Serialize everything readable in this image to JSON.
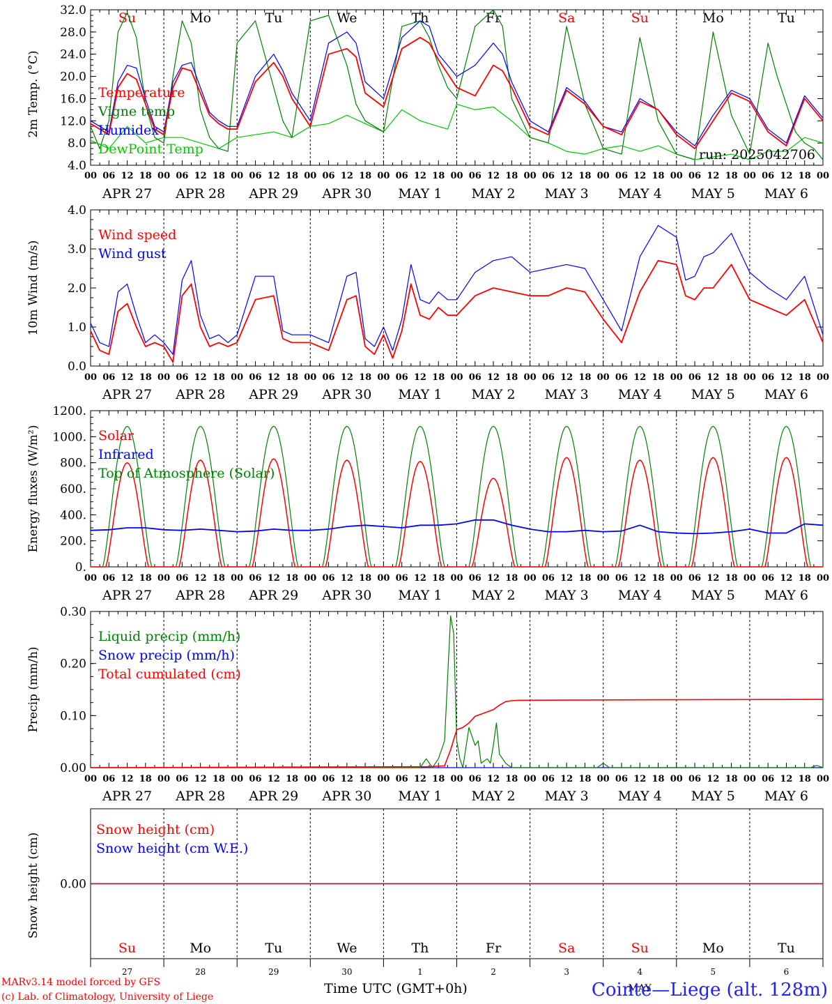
{
  "days": [
    {
      "abbr": "Su",
      "weekend": true,
      "label": "APR 27",
      "num": "27"
    },
    {
      "abbr": "Mo",
      "weekend": false,
      "label": "APR 28",
      "num": "28"
    },
    {
      "abbr": "Tu",
      "weekend": false,
      "label": "APR 29",
      "num": "29"
    },
    {
      "abbr": "We",
      "weekend": false,
      "label": "APR 30",
      "num": "30"
    },
    {
      "abbr": "Th",
      "weekend": false,
      "label": "MAY  1",
      "num": "1"
    },
    {
      "abbr": "Fr",
      "weekend": false,
      "label": "MAY  2",
      "num": "2"
    },
    {
      "abbr": "Sa",
      "weekend": true,
      "label": "MAY  3",
      "num": "3"
    },
    {
      "abbr": "Su",
      "weekend": true,
      "label": "MAY  4",
      "num": "4"
    },
    {
      "abbr": "Mo",
      "weekend": false,
      "label": "MAY  5",
      "num": "5"
    },
    {
      "abbr": "Tu",
      "weekend": false,
      "label": "MAY  6",
      "num": "6"
    }
  ],
  "hour_ticks": [
    "00",
    "06",
    "12",
    "18"
  ],
  "final_hour_tick": "00",
  "footer": {
    "credit_line1": "MARv3.14 model forced by GFS",
    "credit_line2": "(c) Lab. of Climatology, University of Liege",
    "xlabel": "Time UTC (GMT+0h)",
    "month": "MAY",
    "station": "Cointe—Liege (alt. 128m)"
  },
  "colors": {
    "red": "#ff0000",
    "green": "#008000",
    "blue": "#0000ff",
    "lime": "#00c800",
    "weekend": "#ff0000"
  },
  "chart_data": [
    {
      "type": "line",
      "ylabel": "2m Temp. (°C)",
      "ylim": [
        4.0,
        32.0
      ],
      "yticks": [
        "4.0",
        "8.0",
        "12.0",
        "16.0",
        "20.0",
        "24.0",
        "28.0",
        "32.0"
      ],
      "annotation": "run: 2025042706",
      "x_unit": "hours since APR 27 00 UTC",
      "series": [
        {
          "name": "Temperature",
          "color": "#ff0000",
          "x": [
            0,
            6,
            9,
            12,
            15,
            18,
            21,
            24,
            27,
            30,
            33,
            36,
            39,
            42,
            45,
            48,
            54,
            60,
            63,
            66,
            72,
            78,
            84,
            87,
            90,
            96,
            102,
            108,
            111,
            114,
            120,
            126,
            132,
            135,
            138,
            144,
            150,
            156,
            162,
            168,
            174,
            180,
            186,
            192,
            198,
            204,
            210,
            216,
            222,
            228,
            234,
            240
          ],
          "y": [
            11.5,
            9.5,
            18,
            20.5,
            19.5,
            15,
            10.5,
            9.5,
            18,
            21.5,
            21,
            17,
            13,
            11.5,
            10.5,
            10.5,
            19,
            22.5,
            20,
            16,
            11,
            24,
            25,
            23.5,
            17,
            14.5,
            25,
            27,
            26,
            23,
            18,
            16.5,
            22,
            21,
            18,
            11,
            9.5,
            17.5,
            15,
            11,
            9.5,
            15.5,
            14,
            9.5,
            7,
            12,
            17,
            15.5,
            10,
            7.5,
            16,
            12
          ]
        },
        {
          "name": "Vigne temp",
          "color": "#008000",
          "x": [
            0,
            3,
            6,
            9,
            12,
            15,
            18,
            21,
            24,
            27,
            30,
            33,
            36,
            39,
            42,
            45,
            48,
            54,
            60,
            63,
            66,
            72,
            78,
            84,
            87,
            90,
            96,
            102,
            108,
            111,
            114,
            117,
            120,
            126,
            132,
            135,
            138,
            144,
            150,
            156,
            162,
            168,
            174,
            180,
            186,
            192,
            198,
            204,
            210,
            216,
            222,
            225,
            228,
            231,
            234,
            237,
            240
          ],
          "y": [
            11,
            7,
            12,
            28,
            31.5,
            27,
            15,
            9,
            8,
            20,
            30,
            26,
            14,
            9,
            7,
            6.5,
            26,
            30,
            18,
            12,
            9,
            30,
            31,
            22,
            15,
            12,
            10,
            29,
            30,
            27,
            22,
            18,
            16,
            29,
            32,
            29,
            16,
            9,
            8,
            29,
            15,
            7,
            6,
            27,
            12,
            6,
            5,
            28,
            13,
            6,
            26,
            20,
            15,
            10,
            8,
            7,
            5
          ]
        },
        {
          "name": "Humidex",
          "color": "#0000ff",
          "x": [
            0,
            6,
            9,
            12,
            15,
            18,
            21,
            24,
            27,
            30,
            33,
            36,
            39,
            42,
            45,
            48,
            54,
            60,
            63,
            66,
            72,
            78,
            84,
            87,
            90,
            96,
            102,
            108,
            111,
            114,
            117,
            120,
            126,
            132,
            135,
            138,
            144,
            150,
            156,
            162,
            168,
            174,
            180,
            186,
            192,
            198,
            204,
            210,
            216,
            222,
            228,
            234,
            240
          ],
          "y": [
            12,
            10,
            19,
            22,
            21.5,
            16,
            11,
            10,
            19,
            22,
            22.5,
            18,
            13.5,
            12,
            11,
            11,
            20,
            24,
            21,
            17,
            12,
            26,
            28,
            26,
            19,
            16,
            27,
            30,
            29,
            24,
            22,
            20,
            22,
            26,
            24,
            19,
            12,
            10,
            18,
            15.5,
            11,
            10,
            16,
            14,
            10,
            7.5,
            13,
            17.5,
            16,
            10.5,
            8,
            16.5,
            12.5
          ]
        },
        {
          "name": "DewPoint Temp",
          "color": "#00c800",
          "x": [
            0,
            6,
            12,
            18,
            24,
            30,
            36,
            42,
            48,
            54,
            60,
            66,
            72,
            78,
            84,
            90,
            96,
            102,
            108,
            114,
            117,
            120,
            126,
            132,
            138,
            144,
            150,
            156,
            162,
            168,
            174,
            180,
            186,
            192,
            198,
            204,
            210,
            216,
            222,
            228,
            234,
            240
          ],
          "y": [
            8.5,
            7,
            11,
            8,
            9,
            9,
            8,
            7,
            9,
            9.5,
            10,
            9,
            11,
            11.5,
            13,
            11.5,
            10,
            14,
            12,
            11,
            10.5,
            15,
            14,
            14.5,
            12,
            9,
            8,
            6.5,
            6,
            7,
            7.5,
            6.5,
            7.5,
            6,
            5,
            5.5,
            6,
            5,
            6.5,
            6.5,
            9,
            8
          ]
        }
      ]
    },
    {
      "type": "line",
      "ylabel": "10m Wind (m/s)",
      "ylim": [
        0.0,
        4.0
      ],
      "yticks": [
        "0.0",
        "1.0",
        "2.0",
        "3.0",
        "4.0"
      ],
      "x_unit": "hours since APR 27 00 UTC",
      "series": [
        {
          "name": "Wind speed",
          "color": "#ff0000",
          "x": [
            0,
            3,
            6,
            9,
            12,
            15,
            18,
            21,
            24,
            27,
            30,
            33,
            36,
            39,
            42,
            45,
            48,
            54,
            60,
            63,
            66,
            72,
            78,
            84,
            87,
            90,
            93,
            96,
            99,
            102,
            105,
            108,
            111,
            114,
            117,
            120,
            126,
            132,
            138,
            144,
            150,
            156,
            162,
            168,
            174,
            180,
            186,
            192,
            195,
            198,
            201,
            204,
            210,
            216,
            222,
            228,
            234,
            240
          ],
          "y": [
            0.9,
            0.4,
            0.3,
            1.4,
            1.6,
            1.0,
            0.5,
            0.6,
            0.5,
            0.1,
            1.8,
            2.1,
            1.0,
            0.5,
            0.6,
            0.5,
            0.6,
            1.7,
            1.8,
            0.7,
            0.6,
            0.6,
            0.4,
            1.7,
            1.8,
            0.5,
            0.3,
            0.8,
            0.2,
            0.9,
            2.1,
            1.3,
            1.2,
            1.5,
            1.3,
            1.3,
            1.8,
            2.0,
            1.9,
            1.8,
            1.8,
            2.0,
            1.9,
            1.2,
            0.6,
            1.9,
            2.7,
            2.6,
            1.8,
            1.7,
            2.0,
            2.0,
            2.6,
            1.7,
            1.5,
            1.3,
            1.7,
            0.6
          ]
        },
        {
          "name": "Wind gust",
          "color": "#0000ff",
          "x": [
            0,
            3,
            6,
            9,
            12,
            15,
            18,
            21,
            24,
            27,
            30,
            33,
            36,
            39,
            42,
            45,
            48,
            54,
            60,
            63,
            66,
            72,
            78,
            84,
            87,
            90,
            93,
            96,
            99,
            102,
            105,
            108,
            111,
            114,
            117,
            120,
            126,
            132,
            138,
            144,
            150,
            156,
            162,
            168,
            174,
            180,
            186,
            192,
            195,
            198,
            201,
            204,
            210,
            216,
            222,
            228,
            234,
            240
          ],
          "y": [
            1.1,
            0.6,
            0.5,
            1.9,
            2.1,
            1.3,
            0.6,
            0.8,
            0.6,
            0.3,
            2.2,
            2.7,
            1.3,
            0.7,
            0.8,
            0.6,
            0.8,
            2.3,
            2.3,
            0.9,
            0.8,
            0.8,
            0.6,
            2.3,
            2.4,
            0.7,
            0.5,
            1.0,
            0.4,
            1.2,
            2.6,
            1.7,
            1.6,
            1.9,
            1.7,
            1.7,
            2.4,
            2.7,
            2.8,
            2.4,
            2.5,
            2.6,
            2.5,
            1.7,
            0.9,
            2.8,
            3.6,
            3.3,
            2.2,
            2.3,
            2.8,
            2.9,
            3.4,
            2.4,
            2.0,
            1.7,
            2.3,
            0.8
          ]
        }
      ]
    },
    {
      "type": "line",
      "ylabel": "Energy fluxes (W/m²)",
      "ylim": [
        0,
        1200
      ],
      "yticks": [
        "0.",
        "200.",
        "400.",
        "600.",
        "800.",
        "1000.",
        "1200."
      ],
      "x_unit": "hours since APR 27 00 UTC",
      "series": [
        {
          "name": "Solar",
          "color": "#ff0000",
          "peaks": [
            800,
            820,
            830,
            820,
            810,
            680,
            840,
            820,
            840,
            840
          ]
        },
        {
          "name": "Infrared",
          "color": "#0000ff",
          "x": [
            0,
            6,
            12,
            18,
            24,
            30,
            36,
            42,
            48,
            54,
            60,
            66,
            72,
            78,
            84,
            90,
            96,
            102,
            108,
            114,
            120,
            126,
            132,
            138,
            144,
            150,
            156,
            162,
            168,
            174,
            180,
            186,
            192,
            198,
            204,
            210,
            216,
            222,
            228,
            234,
            240
          ],
          "y": [
            280,
            285,
            300,
            300,
            285,
            280,
            290,
            280,
            270,
            275,
            290,
            280,
            280,
            290,
            310,
            320,
            310,
            300,
            320,
            320,
            330,
            360,
            360,
            320,
            290,
            270,
            270,
            280,
            270,
            275,
            320,
            270,
            260,
            255,
            260,
            270,
            290,
            260,
            260,
            330,
            320
          ]
        },
        {
          "name": "Top of Atmosphere (Solar)",
          "color": "#008000",
          "peak": 1080
        }
      ]
    },
    {
      "type": "line",
      "ylabel": "Precip (mm/h)",
      "ylim": [
        0.0,
        0.35
      ],
      "yticks": [
        "0.00",
        "0.10",
        "0.20",
        "0.30"
      ],
      "x_unit": "hours since APR 27 00 UTC",
      "series": [
        {
          "name": "Liquid precip (mm/h)",
          "color": "#008000",
          "x": [
            0,
            108,
            110,
            112,
            114,
            116,
            118,
            119,
            120,
            121,
            122,
            124,
            126,
            127,
            128,
            130,
            131,
            132,
            133,
            134,
            136,
            138,
            140,
            142,
            150,
            166,
            168,
            170,
            236,
            238,
            240
          ],
          "y": [
            0,
            0,
            0.02,
            0,
            0.02,
            0.06,
            0.34,
            0.3,
            0.06,
            0.02,
            0,
            0.09,
            0.05,
            0.06,
            0.01,
            0.02,
            0.01,
            0.05,
            0.1,
            0.03,
            0.01,
            0,
            0,
            0,
            0,
            0,
            0.01,
            0,
            0,
            0.005,
            0
          ]
        },
        {
          "name": "Snow precip (mm/h)",
          "color": "#0000ff",
          "x": [
            0,
            240
          ],
          "y": [
            0,
            0
          ]
        },
        {
          "name": "Total cumulated (cm)",
          "color": "#ff0000",
          "x": [
            0,
            110,
            116,
            118,
            120,
            122,
            124,
            126,
            128,
            130,
            132,
            134,
            136,
            138,
            140,
            180,
            240
          ],
          "y": [
            0,
            0.002,
            0.004,
            0.04,
            0.085,
            0.09,
            0.1,
            0.115,
            0.12,
            0.125,
            0.13,
            0.14,
            0.148,
            0.15,
            0.151,
            0.152,
            0.153
          ]
        }
      ]
    },
    {
      "type": "line",
      "ylabel": "Snow height (cm)",
      "yticks": [
        "0.00"
      ],
      "x_unit": "hours since APR 27 00 UTC",
      "series": [
        {
          "name": "Snow height (cm)",
          "color": "#ff0000",
          "x": [
            0,
            240
          ],
          "y": [
            0,
            0
          ]
        },
        {
          "name": "Snow height (cm W.E.)",
          "color": "#0000ff",
          "x": [
            0,
            240
          ],
          "y": [
            0,
            0
          ]
        }
      ]
    }
  ]
}
